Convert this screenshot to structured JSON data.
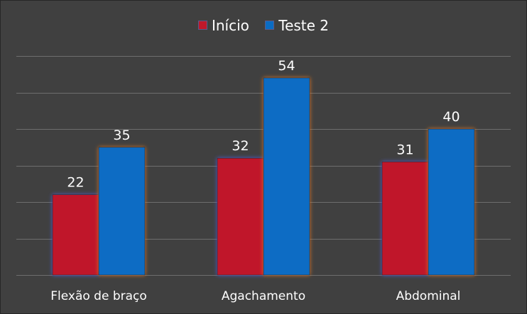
{
  "chart_data": {
    "type": "bar",
    "categories": [
      "Flexão de braço",
      "Agachamento",
      "Abdominal"
    ],
    "series": [
      {
        "name": "Início",
        "values": [
          22,
          32,
          31
        ],
        "color": "#c0182a"
      },
      {
        "name": "Teste 2",
        "values": [
          35,
          54,
          40
        ],
        "color": "#0a6cc4"
      }
    ],
    "ylim": [
      0,
      60
    ],
    "ytick_step": 10,
    "grid": true,
    "legend_position": "top-center",
    "data_labels": true,
    "colors": {
      "background": "#404040",
      "grid": "#6e6e6e",
      "text": "#ffffff",
      "glow_start": "#5060d8",
      "glow_test": "#e07828"
    }
  }
}
